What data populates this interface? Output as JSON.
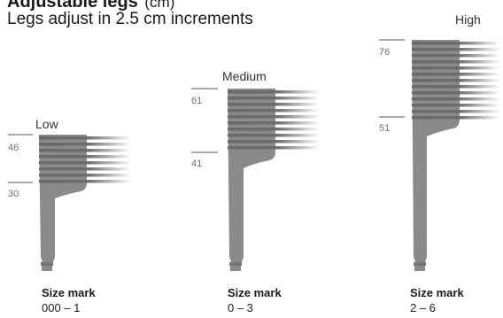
{
  "heading": {
    "title": "Adjustable legs",
    "unit": "(cm)"
  },
  "subheading": "Legs adjust in 2.5 cm increments",
  "legs": [
    {
      "level": "Low",
      "top_mark": "46",
      "bottom_mark": "30",
      "size_mark_label": "Size mark",
      "size_range": "000 – 1"
    },
    {
      "level": "Medium",
      "top_mark": "61",
      "bottom_mark": "41",
      "size_mark_label": "Size mark",
      "size_range": "0 – 3"
    },
    {
      "level": "High",
      "top_mark": "76",
      "bottom_mark": "51",
      "size_mark_label": "Size mark",
      "size_range": "2 – 6"
    }
  ],
  "colors": {
    "leg": "#8a8a8a",
    "leg_dark": "#6e6e6e",
    "stripe": "#6a6a6a",
    "text": "#1a1a1a",
    "tick": "#555555"
  }
}
